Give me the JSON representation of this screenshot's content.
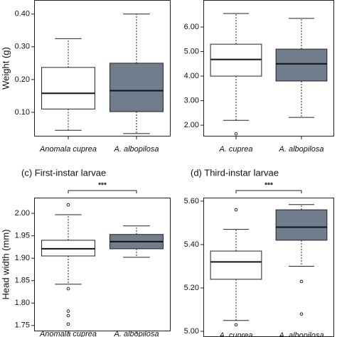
{
  "chart_data": [
    {
      "type": "box",
      "ylabel": "Weight (g)",
      "categories": [
        "Anomala cuprea",
        "A. albopilosa"
      ],
      "colors": [
        "#ffffff",
        "#717d8c"
      ],
      "boxes": [
        {
          "low": 0.045,
          "q1": 0.11,
          "median": 0.158,
          "q3": 0.237,
          "high": 0.325,
          "outliers": []
        },
        {
          "low": 0.035,
          "q1": 0.102,
          "median": 0.166,
          "q3": 0.25,
          "high": 0.4,
          "outliers": []
        }
      ],
      "ylim": [
        0.026,
        0.443
      ],
      "yticks": [
        {
          "value": 0.1,
          "label": "0.10"
        },
        {
          "value": 0.2,
          "label": "0.20"
        },
        {
          "value": 0.3,
          "label": "0.30"
        },
        {
          "value": 0.4,
          "label": "0.40"
        }
      ]
    },
    {
      "type": "box",
      "categories": [
        "A. cuprea",
        "A. albopilosa"
      ],
      "colors": [
        "#ffffff",
        "#717d8c"
      ],
      "boxes": [
        {
          "low": 2.2,
          "q1": 4.0,
          "median": 4.68,
          "q3": 5.3,
          "high": 6.55,
          "outliers": [
            1.65
          ]
        },
        {
          "low": 2.32,
          "q1": 3.8,
          "median": 4.5,
          "q3": 5.1,
          "high": 6.35,
          "outliers": []
        }
      ],
      "ylim": [
        1.54,
        7.1
      ],
      "yticks": [
        {
          "value": 2,
          "label": "2.00"
        },
        {
          "value": 3,
          "label": "3.00"
        },
        {
          "value": 4,
          "label": "4.00"
        },
        {
          "value": 5,
          "label": "5.00"
        },
        {
          "value": 6,
          "label": "6.00"
        }
      ]
    },
    {
      "type": "box",
      "title": "(c) First-instar larvae",
      "ylabel": "Head width (mm)",
      "annotation": "***",
      "categories": [
        "Anomala cuprea",
        "A. albopilosa"
      ],
      "colors": [
        "#ffffff",
        "#717d8c"
      ],
      "boxes": [
        {
          "low": 1.842,
          "q1": 1.905,
          "median": 1.921,
          "q3": 1.94,
          "high": 1.997,
          "outliers": [
            2.019,
            1.832,
            1.782,
            1.772,
            1.753
          ]
        },
        {
          "low": 1.902,
          "q1": 1.921,
          "median": 1.937,
          "q3": 1.953,
          "high": 1.972,
          "outliers": []
        }
      ],
      "ylim": [
        1.737,
        2.035
      ],
      "yticks": [
        {
          "value": 1.75,
          "label": "1.75"
        },
        {
          "value": 1.8,
          "label": "1.80"
        },
        {
          "value": 1.85,
          "label": "1.85"
        },
        {
          "value": 1.9,
          "label": "1.90"
        },
        {
          "value": 1.95,
          "label": "1.95"
        },
        {
          "value": 2,
          "label": "2.00"
        }
      ]
    },
    {
      "type": "box",
      "title": "(d) Third-instar larvae",
      "annotation": "***",
      "categories": [
        "A. cuprea",
        "A. albopilosa"
      ],
      "colors": [
        "#ffffff",
        "#717d8c"
      ],
      "boxes": [
        {
          "low": 5.05,
          "q1": 5.24,
          "median": 5.32,
          "q3": 5.37,
          "high": 5.47,
          "outliers": [
            5.56,
            5.03
          ]
        },
        {
          "low": 5.3,
          "q1": 5.42,
          "median": 5.48,
          "q3": 5.56,
          "high": 5.584,
          "outliers": [
            5.23,
            5.08
          ]
        }
      ],
      "ylim": [
        4.974,
        5.616
      ],
      "yticks": [
        {
          "value": 5,
          "label": "5.00"
        },
        {
          "value": 5.2,
          "label": "5.20"
        },
        {
          "value": 5.4,
          "label": "5.40"
        },
        {
          "value": 5.6,
          "label": "5.60"
        }
      ]
    }
  ]
}
